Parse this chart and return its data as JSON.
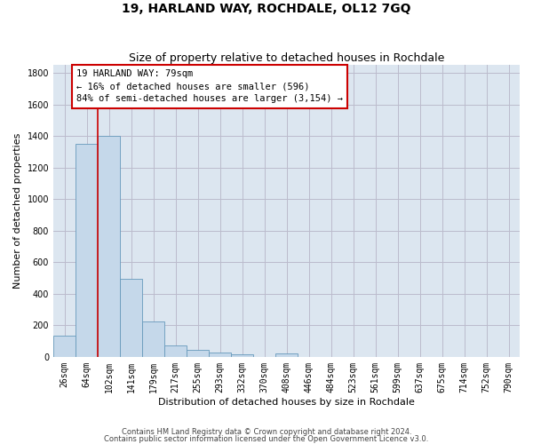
{
  "title": "19, HARLAND WAY, ROCHDALE, OL12 7GQ",
  "subtitle": "Size of property relative to detached houses in Rochdale",
  "xlabel": "Distribution of detached houses by size in Rochdale",
  "ylabel": "Number of detached properties",
  "bar_labels": [
    "26sqm",
    "64sqm",
    "102sqm",
    "141sqm",
    "179sqm",
    "217sqm",
    "255sqm",
    "293sqm",
    "332sqm",
    "370sqm",
    "408sqm",
    "446sqm",
    "484sqm",
    "523sqm",
    "561sqm",
    "599sqm",
    "637sqm",
    "675sqm",
    "714sqm",
    "752sqm",
    "790sqm"
  ],
  "bar_values": [
    135,
    1350,
    1400,
    495,
    225,
    75,
    43,
    27,
    18,
    0,
    20,
    0,
    0,
    0,
    0,
    0,
    0,
    0,
    0,
    0,
    0
  ],
  "bar_color": "#c5d8ea",
  "bar_edge_color": "#6699bb",
  "property_line_x": 1.5,
  "annotation_text_line1": "19 HARLAND WAY: 79sqm",
  "annotation_text_line2": "← 16% of detached houses are smaller (596)",
  "annotation_text_line3": "84% of semi-detached houses are larger (3,154) →",
  "annotation_box_color": "#ffffff",
  "annotation_box_edge": "#cc0000",
  "vline_color": "#cc0000",
  "ylim": [
    0,
    1850
  ],
  "yticks": [
    0,
    200,
    400,
    600,
    800,
    1000,
    1200,
    1400,
    1600,
    1800
  ],
  "grid_color": "#bbbbcc",
  "bg_color": "#dce6f0",
  "footer1": "Contains HM Land Registry data © Crown copyright and database right 2024.",
  "footer2": "Contains public sector information licensed under the Open Government Licence v3.0.",
  "title_fontsize": 10,
  "subtitle_fontsize": 9,
  "xlabel_fontsize": 8,
  "ylabel_fontsize": 8,
  "tick_fontsize": 7,
  "ann_fontsize": 7.5
}
